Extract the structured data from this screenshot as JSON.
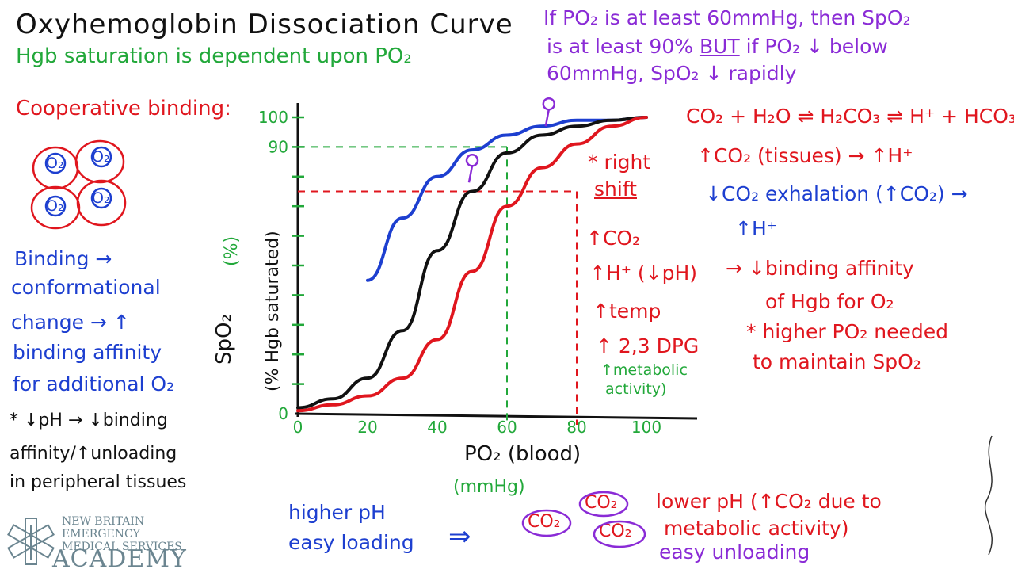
{
  "title": "Oxyhemoglobin Dissociation Curve",
  "subtitle": "Hgb saturation is dependent upon PO₂",
  "top_note": {
    "line1": "If PO₂ is at least 60mmHg, then SpO₂",
    "line2_a": "is at least 90%",
    "line2_b": "BUT",
    "line2_c": "if PO₂ ↓ below",
    "line3": "60mmHg, SpO₂ ↓ rapidly"
  },
  "cooperative": {
    "heading": "Cooperative binding:",
    "o2_label": "O₂",
    "note_lines": [
      "Binding →",
      "conformational",
      "change → ↑",
      "binding affinity",
      "for additional O₂"
    ],
    "ph_lines": [
      "* ↓pH → ↓binding",
      "affinity/↑unloading",
      "in peripheral tissues"
    ]
  },
  "chart_data": {
    "type": "line",
    "xlabel": "PO₂ (blood)",
    "xunit": "(mmHg)",
    "ylabel": "SpO₂",
    "ylabel_unit": "(%)",
    "ylabel_sub": "(% Hgb saturated)",
    "x_ticks": [
      "0",
      "20",
      "40",
      "60",
      "80",
      "100"
    ],
    "y_ticks": [
      {
        "label": "100",
        "value": 100
      },
      {
        "label": "90",
        "value": 90
      },
      {
        "label": "0",
        "value": 0
      }
    ],
    "xlim": [
      0,
      100
    ],
    "ylim": [
      0,
      100
    ],
    "series": [
      {
        "color": "#1d3fd0",
        "x": [
          20,
          30,
          40,
          50,
          60,
          70,
          80,
          90,
          100
        ],
        "y": [
          45,
          66,
          80,
          89,
          94,
          97,
          99,
          99,
          100
        ]
      },
      {
        "color": "#111111",
        "x": [
          0,
          10,
          20,
          30,
          40,
          50,
          60,
          70,
          80,
          90,
          100
        ],
        "y": [
          2,
          5,
          12,
          28,
          55,
          75,
          88,
          94,
          97,
          99,
          100
        ]
      },
      {
        "color": "#e0161e",
        "x": [
          0,
          10,
          20,
          30,
          40,
          50,
          60,
          70,
          80,
          90,
          100
        ],
        "y": [
          1,
          3,
          6,
          12,
          25,
          48,
          70,
          83,
          91,
          97,
          100
        ]
      }
    ],
    "guides": [
      {
        "color": "#22a83a",
        "x": 60,
        "y": 90
      },
      {
        "color": "#e0161e",
        "x": 80,
        "y": 75
      }
    ]
  },
  "equation": {
    "eq": "CO₂ + H₂O ⇌ H₂CO₃ ⇌ H⁺ + HCO₃⁻",
    "tissues": "↑CO₂ (tissues) → ↑H⁺",
    "exhalation": "↓CO₂ exhalation (↑CO₂) →",
    "h_plus": "↑H⁺"
  },
  "right_shift": {
    "star": "* right",
    "shift": "shift",
    "causes": [
      "↑CO₂",
      "↑H⁺ (↓pH)",
      "↑temp",
      "↑ 2,3 DPG"
    ],
    "metabolic": [
      "↑metabolic",
      "activity)"
    ],
    "effect": [
      "→ ↓binding affinity",
      "of Hgb for O₂"
    ],
    "higher_needed": [
      "* higher PO₂ needed",
      "to maintain SpO₂"
    ]
  },
  "bottom": {
    "higher_ph": [
      "higher pH",
      "easy loading"
    ],
    "arrow": "⇒",
    "co2": "CO₂",
    "lower_ph": [
      "lower pH (↑CO₂ due to",
      "metabolic activity)",
      "easy unloading"
    ]
  },
  "logo": {
    "lines": [
      "NEW BRITAIN",
      "EMERGENCY",
      "MEDICAL SERVICES"
    ],
    "academy": "ACADEMY"
  },
  "colors": {
    "green": "#22a83a",
    "purple": "#8a2bd6",
    "red": "#e0161e",
    "blue": "#1d3fd0",
    "black": "#111111"
  }
}
